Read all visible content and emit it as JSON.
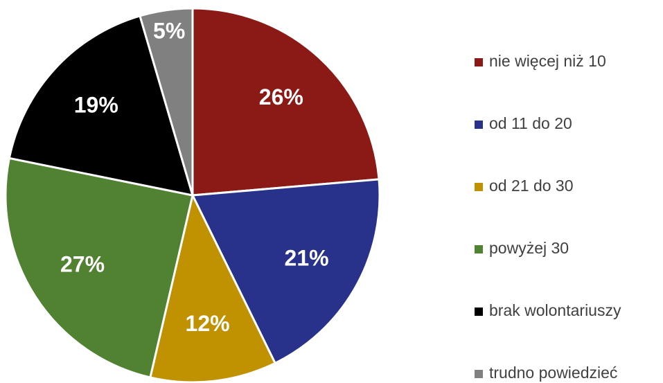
{
  "chart_data": {
    "type": "pie",
    "categories": [
      "nie więcej niż 10",
      "od 11 do 20",
      "od 21 do 30",
      "powyżej 30",
      "brak wolontariuszy",
      "trudno powiedzieć"
    ],
    "values": [
      26,
      21,
      12,
      27,
      19,
      5
    ],
    "value_labels": [
      "26%",
      "21%",
      "12%",
      "27%",
      "19%",
      "5%"
    ],
    "colors": [
      "#8b1a16",
      "#28328a",
      "#c09100",
      "#508232",
      "#000000",
      "#808080"
    ],
    "legend": "right"
  }
}
